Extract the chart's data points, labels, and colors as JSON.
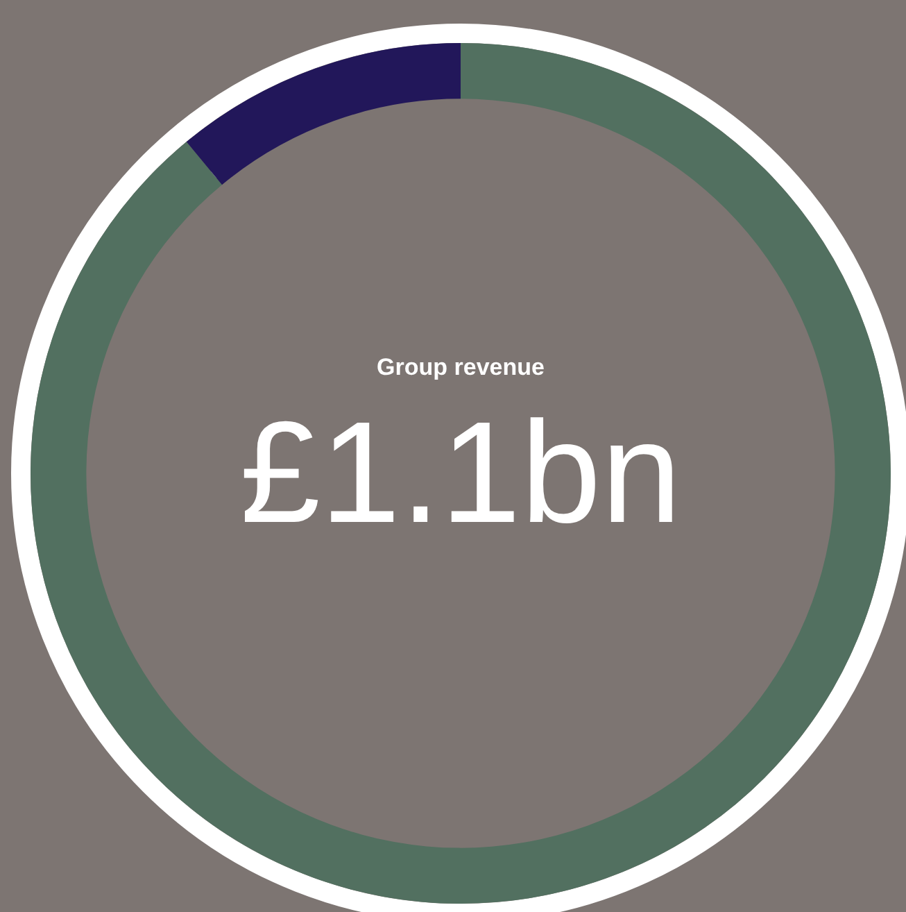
{
  "chart_data": {
    "type": "donut",
    "title": "Group revenue",
    "subtitle": "£1.1bn",
    "categories": [
      null,
      null
    ],
    "values": [
      89,
      11
    ],
    "colors": [
      "#527060",
      "#22175a"
    ],
    "legend": false
  }
}
